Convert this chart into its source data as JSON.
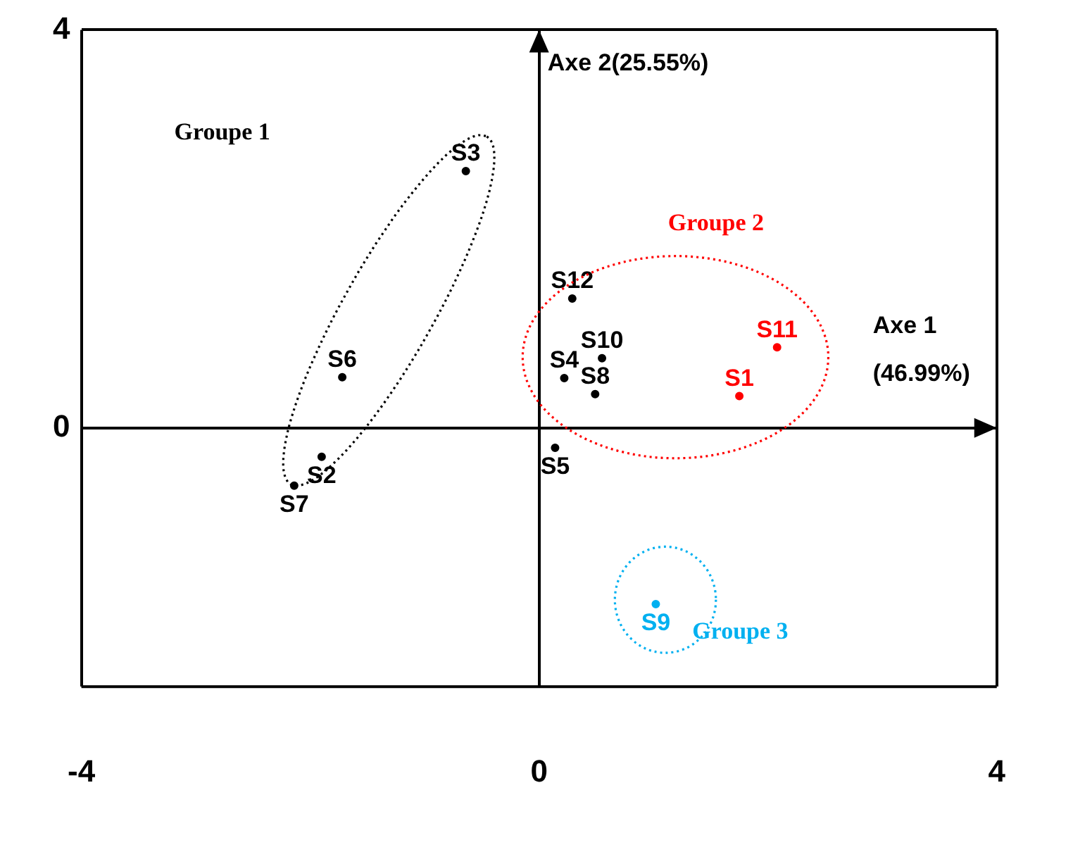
{
  "chart_data": {
    "type": "scatter",
    "xlabel": "Axe 1\n(46.99%)",
    "ylabel": "Axe 2(25.55%)",
    "xlim": [
      -4,
      4
    ],
    "xticks": [
      -4,
      0,
      4
    ],
    "ylim": [
      -2.6,
      4
    ],
    "yticks": [
      0,
      4
    ],
    "grid": true,
    "legend": false,
    "marker": "circle",
    "series": [
      {
        "name": "Groupe 1",
        "color": "#000000",
        "x": [
          -0.64,
          -1.72,
          -1.9,
          -2.14
        ],
        "values": [
          2.58,
          0.51,
          -0.29,
          -0.58
        ],
        "value_labels": [
          "S3",
          "S6",
          "S2",
          "S7"
        ]
      },
      {
        "color": "#000000",
        "x": [
          0.29,
          0.55,
          0.22,
          0.49,
          0.14
        ],
        "values": [
          1.3,
          0.7,
          0.5,
          0.34,
          -0.2
        ],
        "value_labels": [
          "S12",
          "S10",
          "S4",
          "S8",
          "S5"
        ]
      },
      {
        "name": "Groupe 2",
        "color": "#ff0000",
        "x": [
          2.08,
          1.75
        ],
        "values": [
          0.81,
          0.32
        ],
        "value_labels": [
          "S11",
          "S1"
        ]
      },
      {
        "name": "Groupe 3",
        "color": "#00b0f0",
        "x": [
          1.02
        ],
        "values": [
          -1.77
        ],
        "value_labels": [
          "S9"
        ]
      }
    ]
  }
}
